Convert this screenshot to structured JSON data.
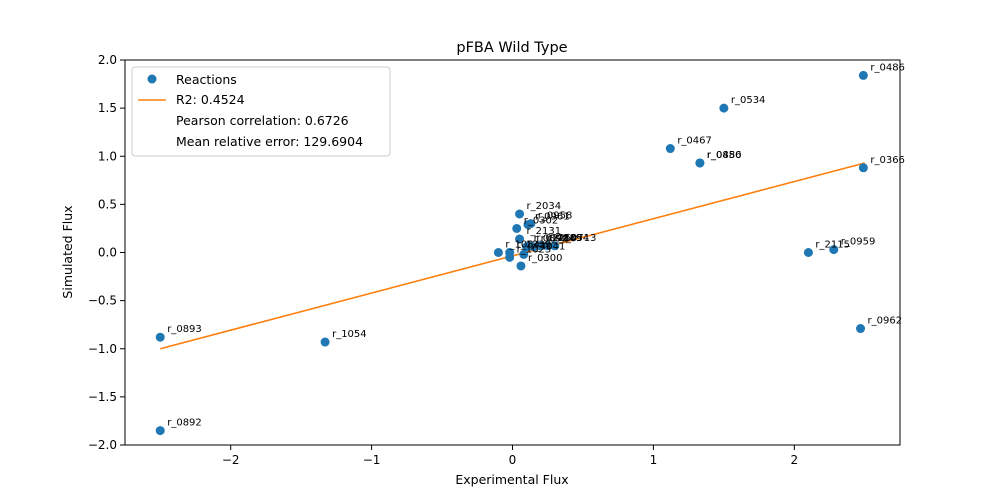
{
  "chart_data": {
    "type": "scatter",
    "title": "pFBA Wild Type",
    "xlabel": "Experimental Flux",
    "ylabel": "Simulated Flux",
    "xlim": [
      -2.75,
      2.75
    ],
    "ylim": [
      -2.0,
      2.0
    ],
    "xticks": [
      -2,
      -1,
      0,
      1,
      2
    ],
    "yticks": [
      -2.0,
      -1.5,
      -1.0,
      -0.5,
      0.0,
      0.5,
      1.0,
      1.5,
      2.0
    ],
    "xtick_labels": [
      "−2",
      "−1",
      "0",
      "1",
      "2"
    ],
    "ytick_labels": [
      "−2.0",
      "−1.5",
      "−1.0",
      "−0.5",
      "0.0",
      "0.5",
      "1.0",
      "1.5",
      "2.0"
    ],
    "grid": false,
    "legend": {
      "placement": "top-left",
      "entries": [
        {
          "text": "Reactions",
          "marker": "point"
        },
        {
          "text": "R2: 0.4524",
          "marker": "line"
        },
        {
          "text": "Pearson correlation: 0.6726",
          "marker": "none"
        },
        {
          "text": "Mean relative error: 129.6904",
          "marker": "none"
        }
      ]
    },
    "colors": {
      "points": "#1f77b4",
      "fit_line": "#ff7f0e"
    },
    "fit_line": {
      "x": [
        -2.5,
        2.5
      ],
      "y": [
        -1.0,
        0.93
      ]
    },
    "points": [
      {
        "label": "r_0486",
        "x": 2.49,
        "y": 1.84
      },
      {
        "label": "r_0534",
        "x": 1.5,
        "y": 1.5
      },
      {
        "label": "r_0467",
        "x": 1.12,
        "y": 1.08
      },
      {
        "label": "r_0886",
        "x": 1.33,
        "y": 0.93
      },
      {
        "label": "r_0450",
        "x": 1.33,
        "y": 0.93
      },
      {
        "label": "r_0366",
        "x": 2.49,
        "y": 0.88
      },
      {
        "label": "r_2034",
        "x": 0.05,
        "y": 0.4
      },
      {
        "label": "r_0958",
        "x": 0.13,
        "y": 0.3
      },
      {
        "label": "r_0961",
        "x": 0.11,
        "y": 0.29
      },
      {
        "label": "r_0302",
        "x": 0.03,
        "y": 0.25
      },
      {
        "label": "r_2131",
        "x": 0.05,
        "y": 0.14
      },
      {
        "label": "r_2115",
        "x": 2.1,
        "y": 0.0
      },
      {
        "label": "r_0959",
        "x": 2.28,
        "y": 0.03
      },
      {
        "label": "r_1084",
        "x": -0.1,
        "y": 0.0
      },
      {
        "label": "r_1239",
        "x": -0.02,
        "y": 0.0
      },
      {
        "label": "r_0892",
        "x": 0.1,
        "y": 0.06
      },
      {
        "label": "r_0889",
        "x": 0.2,
        "y": 0.07
      },
      {
        "label": "r_1054",
        "x": 0.25,
        "y": 0.07
      },
      {
        "label": "r_0714",
        "x": 0.15,
        "y": 0.06
      },
      {
        "label": "r_0226",
        "x": 0.12,
        "y": 0.07
      },
      {
        "label": "r_0713",
        "x": 0.3,
        "y": 0.07
      },
      {
        "label": "r_4041",
        "x": 0.08,
        "y": -0.02
      },
      {
        "label": "r_1023",
        "x": -0.02,
        "y": -0.05
      },
      {
        "label": "r_0300",
        "x": 0.06,
        "y": -0.14
      },
      {
        "label": "r_0893",
        "x": -2.5,
        "y": -0.88
      },
      {
        "label": "r_1054",
        "x": -1.33,
        "y": -0.93
      },
      {
        "label": "r_0962",
        "x": 2.47,
        "y": -0.79
      },
      {
        "label": "r_0892",
        "x": -2.5,
        "y": -1.85
      }
    ]
  }
}
